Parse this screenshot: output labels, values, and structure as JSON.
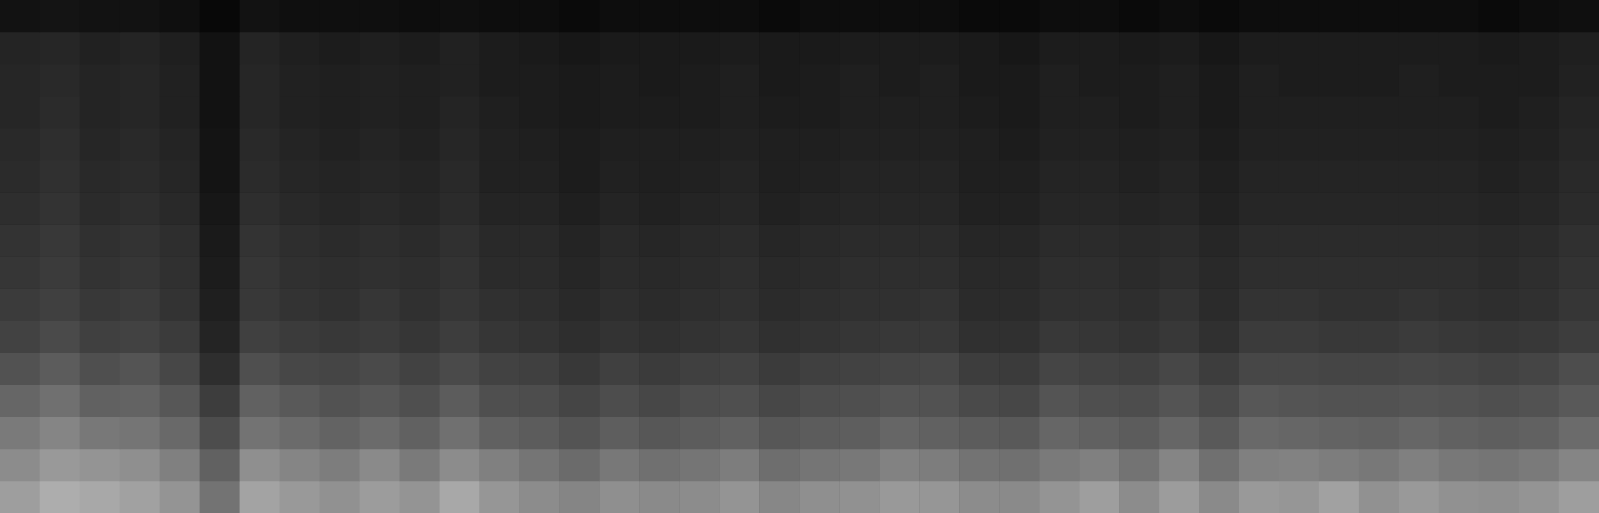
{
  "chart_data": {
    "type": "heatmap",
    "tick_labels": false,
    "zlim": [
      0,
      1
    ],
    "cells": [
      [
        0.62,
        0.68,
        0.66,
        0.63,
        0.58,
        0.45,
        0.64,
        0.6,
        0.57,
        0.61,
        0.58,
        0.66,
        0.59,
        0.55,
        0.52,
        0.56,
        0.54,
        0.55,
        0.58,
        0.53,
        0.56,
        0.57,
        0.6,
        0.59,
        0.55,
        0.54,
        0.58,
        0.62,
        0.55,
        0.61,
        0.54,
        0.6,
        0.59,
        0.63,
        0.57,
        0.6,
        0.57,
        0.56,
        0.58,
        0.62
      ],
      [
        0.55,
        0.6,
        0.58,
        0.56,
        0.5,
        0.38,
        0.56,
        0.52,
        0.49,
        0.54,
        0.48,
        0.55,
        0.5,
        0.46,
        0.42,
        0.47,
        0.44,
        0.46,
        0.49,
        0.43,
        0.46,
        0.47,
        0.51,
        0.49,
        0.45,
        0.44,
        0.48,
        0.5,
        0.45,
        0.52,
        0.44,
        0.5,
        0.51,
        0.49,
        0.47,
        0.5,
        0.47,
        0.46,
        0.48,
        0.52
      ],
      [
        0.48,
        0.52,
        0.47,
        0.46,
        0.41,
        0.3,
        0.45,
        0.42,
        0.39,
        0.42,
        0.38,
        0.44,
        0.38,
        0.36,
        0.33,
        0.37,
        0.34,
        0.36,
        0.38,
        0.34,
        0.36,
        0.37,
        0.4,
        0.38,
        0.36,
        0.35,
        0.4,
        0.38,
        0.36,
        0.4,
        0.35,
        0.41,
        0.4,
        0.39,
        0.38,
        0.4,
        0.38,
        0.37,
        0.38,
        0.42
      ],
      [
        0.4,
        0.44,
        0.38,
        0.39,
        0.34,
        0.24,
        0.38,
        0.35,
        0.32,
        0.34,
        0.31,
        0.36,
        0.31,
        0.3,
        0.27,
        0.3,
        0.28,
        0.3,
        0.31,
        0.28,
        0.3,
        0.31,
        0.33,
        0.32,
        0.29,
        0.28,
        0.33,
        0.31,
        0.3,
        0.33,
        0.29,
        0.34,
        0.33,
        0.32,
        0.32,
        0.33,
        0.32,
        0.31,
        0.32,
        0.35
      ],
      [
        0.32,
        0.36,
        0.31,
        0.33,
        0.28,
        0.18,
        0.31,
        0.28,
        0.27,
        0.29,
        0.26,
        0.29,
        0.26,
        0.25,
        0.22,
        0.25,
        0.23,
        0.25,
        0.26,
        0.23,
        0.25,
        0.26,
        0.27,
        0.28,
        0.24,
        0.23,
        0.27,
        0.26,
        0.25,
        0.28,
        0.24,
        0.28,
        0.28,
        0.27,
        0.27,
        0.28,
        0.27,
        0.26,
        0.27,
        0.3
      ],
      [
        0.26,
        0.29,
        0.25,
        0.26,
        0.23,
        0.14,
        0.25,
        0.23,
        0.22,
        0.23,
        0.21,
        0.24,
        0.21,
        0.2,
        0.18,
        0.2,
        0.19,
        0.2,
        0.21,
        0.19,
        0.2,
        0.21,
        0.22,
        0.22,
        0.19,
        0.19,
        0.22,
        0.21,
        0.2,
        0.22,
        0.19,
        0.23,
        0.23,
        0.22,
        0.22,
        0.23,
        0.22,
        0.21,
        0.22,
        0.24
      ],
      [
        0.23,
        0.25,
        0.22,
        0.23,
        0.2,
        0.12,
        0.22,
        0.2,
        0.19,
        0.21,
        0.19,
        0.21,
        0.19,
        0.18,
        0.16,
        0.18,
        0.17,
        0.18,
        0.19,
        0.17,
        0.18,
        0.19,
        0.19,
        0.2,
        0.17,
        0.17,
        0.19,
        0.19,
        0.18,
        0.2,
        0.17,
        0.2,
        0.2,
        0.19,
        0.19,
        0.2,
        0.19,
        0.18,
        0.19,
        0.21
      ],
      [
        0.21,
        0.23,
        0.2,
        0.21,
        0.19,
        0.11,
        0.21,
        0.19,
        0.18,
        0.19,
        0.18,
        0.2,
        0.17,
        0.17,
        0.15,
        0.17,
        0.16,
        0.17,
        0.18,
        0.16,
        0.17,
        0.18,
        0.18,
        0.18,
        0.16,
        0.16,
        0.18,
        0.18,
        0.17,
        0.18,
        0.16,
        0.18,
        0.18,
        0.18,
        0.18,
        0.18,
        0.18,
        0.17,
        0.18,
        0.2
      ],
      [
        0.2,
        0.22,
        0.19,
        0.2,
        0.18,
        0.1,
        0.2,
        0.18,
        0.17,
        0.18,
        0.17,
        0.19,
        0.16,
        0.16,
        0.14,
        0.16,
        0.15,
        0.16,
        0.17,
        0.15,
        0.16,
        0.17,
        0.17,
        0.17,
        0.15,
        0.15,
        0.17,
        0.17,
        0.16,
        0.17,
        0.15,
        0.17,
        0.17,
        0.17,
        0.17,
        0.17,
        0.17,
        0.16,
        0.17,
        0.19
      ],
      [
        0.18,
        0.2,
        0.17,
        0.18,
        0.16,
        0.09,
        0.18,
        0.16,
        0.15,
        0.16,
        0.15,
        0.17,
        0.14,
        0.14,
        0.12,
        0.14,
        0.13,
        0.14,
        0.15,
        0.13,
        0.14,
        0.15,
        0.15,
        0.15,
        0.13,
        0.13,
        0.15,
        0.15,
        0.14,
        0.15,
        0.13,
        0.15,
        0.15,
        0.15,
        0.15,
        0.15,
        0.15,
        0.14,
        0.15,
        0.17
      ],
      [
        0.17,
        0.19,
        0.16,
        0.17,
        0.15,
        0.08,
        0.17,
        0.15,
        0.14,
        0.15,
        0.14,
        0.16,
        0.13,
        0.13,
        0.11,
        0.13,
        0.12,
        0.13,
        0.14,
        0.12,
        0.13,
        0.14,
        0.14,
        0.14,
        0.12,
        0.12,
        0.14,
        0.14,
        0.13,
        0.14,
        0.12,
        0.14,
        0.14,
        0.14,
        0.14,
        0.14,
        0.14,
        0.13,
        0.14,
        0.16
      ],
      [
        0.16,
        0.18,
        0.15,
        0.16,
        0.14,
        0.08,
        0.16,
        0.14,
        0.13,
        0.14,
        0.13,
        0.15,
        0.13,
        0.12,
        0.11,
        0.12,
        0.12,
        0.12,
        0.13,
        0.12,
        0.12,
        0.13,
        0.13,
        0.13,
        0.12,
        0.11,
        0.13,
        0.13,
        0.12,
        0.13,
        0.11,
        0.13,
        0.13,
        0.13,
        0.13,
        0.13,
        0.13,
        0.12,
        0.13,
        0.15
      ],
      [
        0.15,
        0.17,
        0.14,
        0.15,
        0.13,
        0.07,
        0.15,
        0.13,
        0.12,
        0.13,
        0.12,
        0.14,
        0.12,
        0.11,
        0.1,
        0.11,
        0.11,
        0.11,
        0.12,
        0.11,
        0.11,
        0.12,
        0.12,
        0.12,
        0.11,
        0.1,
        0.12,
        0.12,
        0.11,
        0.12,
        0.1,
        0.12,
        0.12,
        0.12,
        0.12,
        0.12,
        0.12,
        0.11,
        0.12,
        0.14
      ],
      [
        0.15,
        0.16,
        0.14,
        0.15,
        0.13,
        0.07,
        0.15,
        0.13,
        0.12,
        0.13,
        0.12,
        0.13,
        0.11,
        0.11,
        0.1,
        0.11,
        0.1,
        0.11,
        0.12,
        0.1,
        0.11,
        0.12,
        0.11,
        0.12,
        0.1,
        0.1,
        0.12,
        0.11,
        0.11,
        0.12,
        0.1,
        0.12,
        0.11,
        0.11,
        0.11,
        0.12,
        0.11,
        0.11,
        0.11,
        0.13
      ],
      [
        0.14,
        0.15,
        0.13,
        0.14,
        0.12,
        0.07,
        0.14,
        0.12,
        0.11,
        0.12,
        0.11,
        0.13,
        0.11,
        0.1,
        0.09,
        0.1,
        0.1,
        0.1,
        0.11,
        0.1,
        0.1,
        0.11,
        0.11,
        0.11,
        0.1,
        0.09,
        0.11,
        0.11,
        0.1,
        0.11,
        0.09,
        0.11,
        0.11,
        0.11,
        0.11,
        0.11,
        0.11,
        0.1,
        0.11,
        0.12
      ],
      [
        0.07,
        0.08,
        0.07,
        0.07,
        0.06,
        0.03,
        0.07,
        0.06,
        0.06,
        0.06,
        0.05,
        0.06,
        0.05,
        0.05,
        0.04,
        0.05,
        0.05,
        0.05,
        0.05,
        0.04,
        0.05,
        0.05,
        0.05,
        0.05,
        0.04,
        0.04,
        0.05,
        0.05,
        0.04,
        0.05,
        0.04,
        0.05,
        0.05,
        0.05,
        0.05,
        0.05,
        0.05,
        0.04,
        0.05,
        0.06
      ]
    ]
  }
}
